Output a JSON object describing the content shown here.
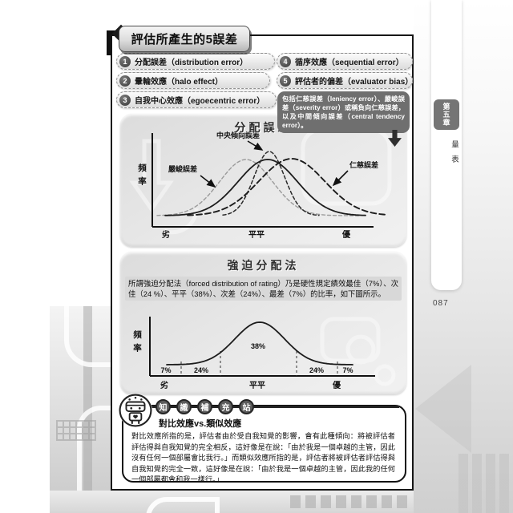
{
  "header": {
    "title": "評估所產生的5誤差",
    "items": [
      {
        "num": "1",
        "label": "分配誤差（distribution error）"
      },
      {
        "num": "2",
        "label": "暈輪效應（halo effect）"
      },
      {
        "num": "3",
        "label": "自我中心效應（egoecentric error）"
      },
      {
        "num": "4",
        "label": "循序效應（sequential error）"
      },
      {
        "num": "5",
        "label": "評估者的偏差（evaluator bias）"
      }
    ],
    "note": "包括仁慈誤差（leniency error）、嚴峻誤差（severity error）或稱負向仁慈誤差，以及中間傾向誤差（central tendency error）。"
  },
  "sidebar": {
    "chapter": "第五章",
    "section": "量表",
    "page_number": "087"
  },
  "forced_panel": {
    "description": "所謂強迫分配法（forced distribution of rating）乃是硬性規定績效最佳（7%）、次佳（24 %）、平平（38%）、次差（24%）、最差（7%）的比率，如下圖所示。"
  },
  "knowledge": {
    "badge": [
      "知",
      "識",
      "補",
      "充",
      "站"
    ],
    "heading": "對比效應vs.類似效應",
    "body": "對比效應所指的是，評估者由於受自我知覺的影響，會有此種傾向：將被評估者評估得與自我知覺的完全相反，這好像是在說：「由於我是一個卓越的主管，因此沒有任何一個部屬會比我行。」而類似效應所指的是，評估者將被評估者評估得與自我知覺的完全一致，這好像是在說：「由於我是一個卓越的主管，因此我的任何一個部屬都會和我一樣行。」"
  },
  "colors": {
    "number_badge": "#3a3a3a",
    "note_box": "#6f6f6f",
    "chapter_tab": "#757575",
    "panel_background": "#e3e3e3",
    "curve_ink": "#1c1c1c",
    "severity_curve_gray": "#9b9b9b"
  },
  "chart_data": [
    {
      "type": "line",
      "title": "分配誤差",
      "ylabel": "頻率",
      "categories": [
        "劣",
        "平平",
        "優"
      ],
      "baseline": 127,
      "series": [
        {
          "id": "severity",
          "label": "嚴峻誤差",
          "shape": "gaussian",
          "mu": 157,
          "sigma": 33,
          "amp": 70,
          "x0": 46,
          "x1": 298,
          "color": "#9b9b9b",
          "dash": "4 3",
          "width": 1.4
        },
        {
          "id": "actual-solid",
          "label": "",
          "shape": "gaussian",
          "mu": 184,
          "sigma": 37,
          "amp": 70,
          "x0": 56,
          "x1": 306,
          "color": "#1c1c1c",
          "dash": "",
          "width": 1.8
        },
        {
          "id": "central-tendency",
          "label": "中央傾向誤差",
          "shape": "gaussian",
          "mu": 186,
          "sigma": 19,
          "amp": 80,
          "x0": 128,
          "x1": 248,
          "color": "#2a2a2a",
          "dash": "4 3",
          "width": 1.5
        },
        {
          "id": "leniency",
          "label": "仁慈誤差",
          "shape": "gaussian",
          "mu": 214,
          "sigma": 41,
          "amp": 71,
          "x0": 84,
          "x1": 330,
          "color": "#1c1c1c",
          "dash": "7 4",
          "width": 1.9
        }
      ]
    },
    {
      "type": "area",
      "title": "強迫分配法",
      "ylabel": "頻率",
      "categories": [
        "劣",
        "平平",
        "優"
      ],
      "segment_labels": [
        "7%",
        "24%",
        "38%",
        "24%",
        "7%"
      ],
      "segment_values": [
        7,
        24,
        38,
        24,
        7
      ],
      "baseline": 141,
      "series": [
        {
          "id": "normal-curve",
          "label": "",
          "shape": "gaussian",
          "mu": 174,
          "sigma": 31,
          "amp": 53,
          "x0": 58,
          "x1": 290,
          "color": "#1c1c1c",
          "dash": "",
          "width": 1.8
        }
      ]
    }
  ]
}
